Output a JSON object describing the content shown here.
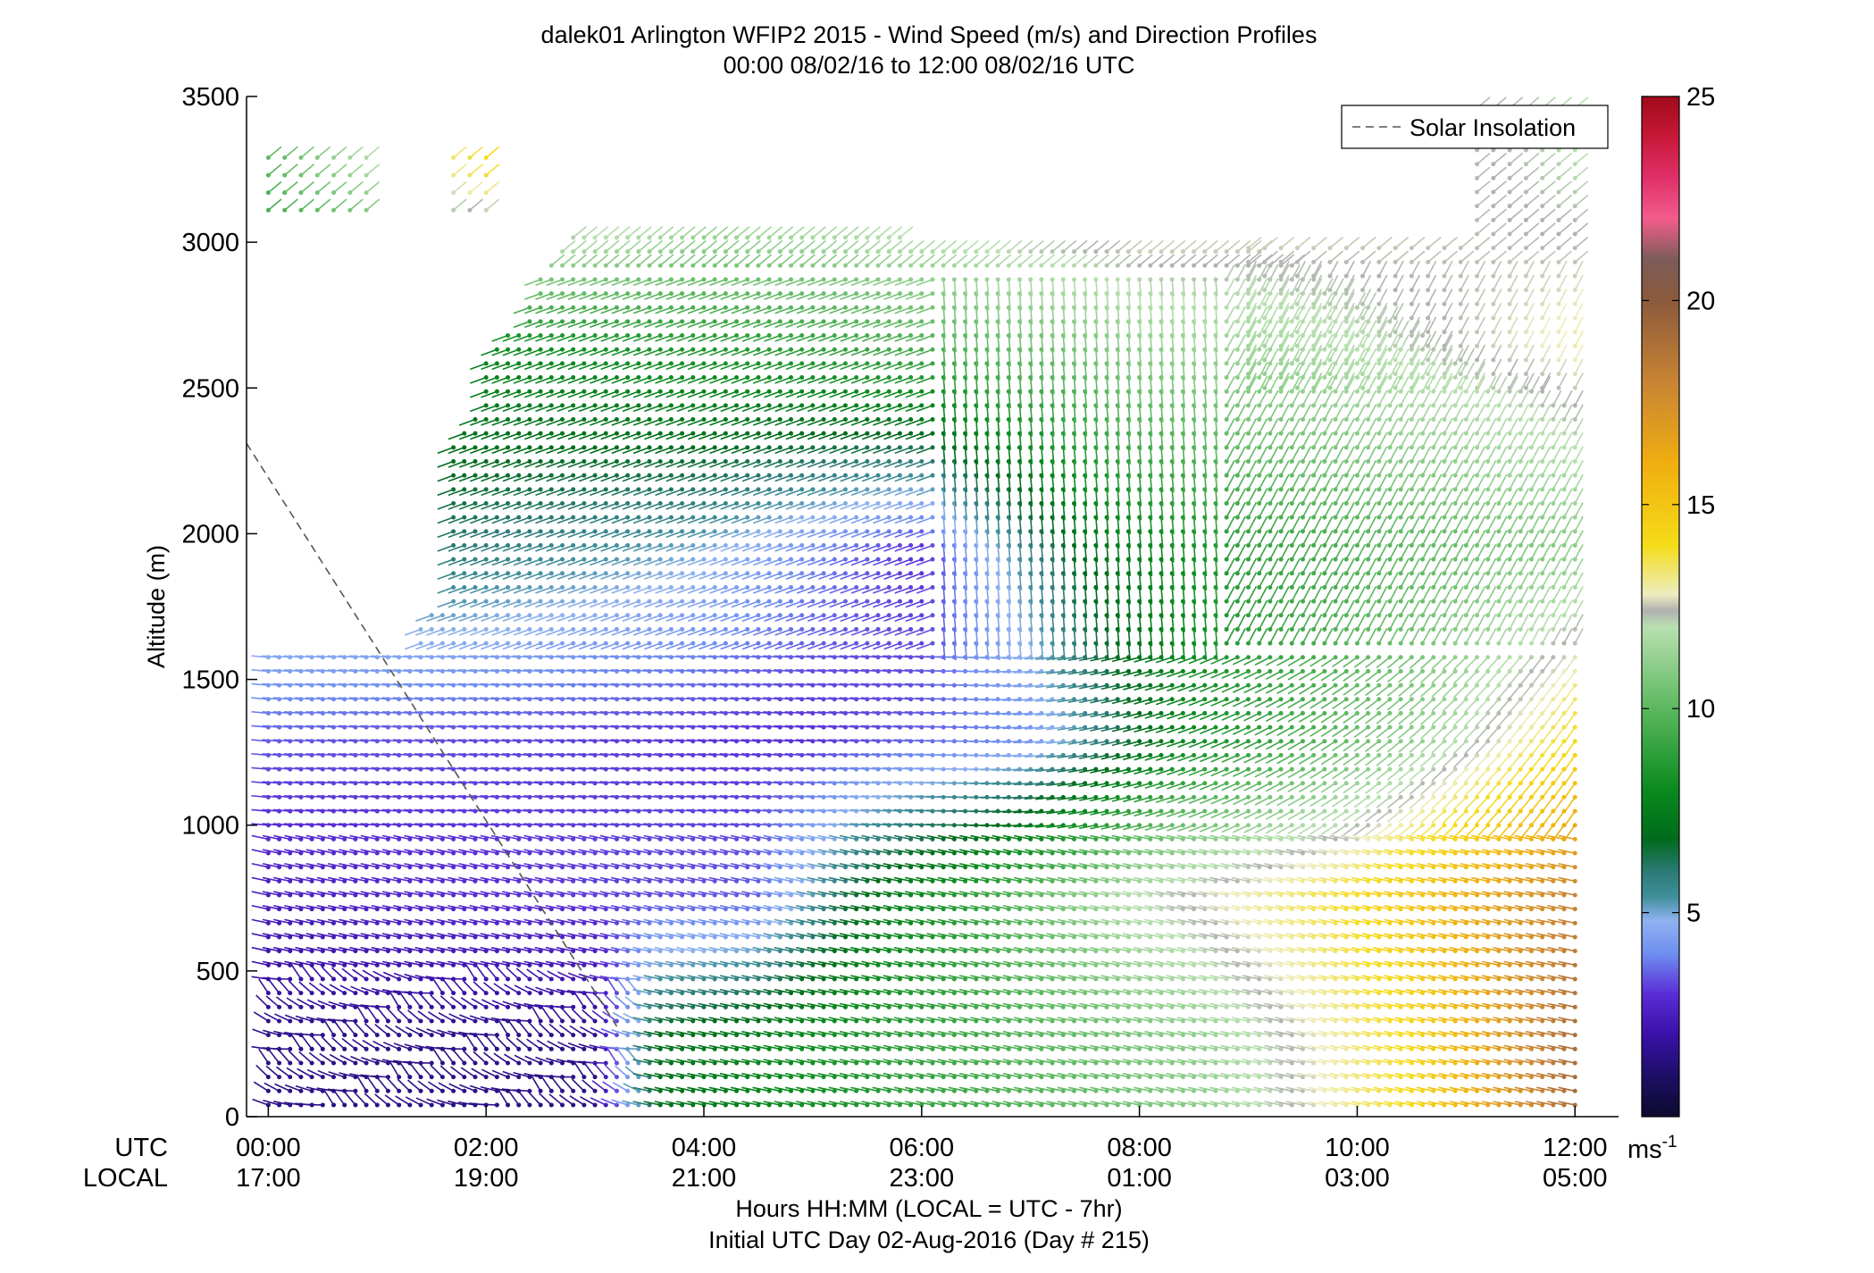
{
  "chart_data": {
    "type": "wind_barb_profile",
    "title": "dalek01 Arlington WFIP2 2015 - Wind Speed (m/s) and Direction Profiles",
    "subtitle": "00:00 08/02/16 to 12:00 08/02/16  UTC",
    "ylabel": "Altitude (m)",
    "ylim": [
      0,
      3500
    ],
    "yticks": [
      "0",
      "500",
      "1000",
      "1500",
      "2000",
      "2500",
      "3000",
      "3500"
    ],
    "ytick_values": [
      0,
      500,
      1000,
      1500,
      2000,
      2500,
      3000,
      3500
    ],
    "xlim_hours": [
      -0.2,
      12.4
    ],
    "xtick_hours": [
      0,
      2,
      4,
      6,
      8,
      10,
      12
    ],
    "xrow_label_utc": "UTC",
    "xrow_label_local": "LOCAL",
    "xticks_utc": [
      "00:00",
      "02:00",
      "04:00",
      "06:00",
      "08:00",
      "10:00",
      "12:00"
    ],
    "xticks_local": [
      "17:00",
      "19:00",
      "21:00",
      "23:00",
      "01:00",
      "03:00",
      "05:00"
    ],
    "xlabel_line1": "Hours HH:MM  (LOCAL = UTC - 7hr)",
    "xlabel_line2": "Initial UTC Day 02-Aug-2016 (Day # 215)",
    "legend": {
      "entries": [
        "Solar Insolation"
      ],
      "placement": "top-right"
    },
    "colorbar": {
      "range": [
        0,
        25
      ],
      "ticks": [
        "5",
        "10",
        "15",
        "20",
        "25"
      ],
      "tick_values": [
        5,
        10,
        15,
        20,
        25
      ],
      "unit_label": "ms",
      "unit_exponent": "-1",
      "stops": [
        {
          "value": 0,
          "color": "#0d0a2e"
        },
        {
          "value": 1,
          "color": "#1c0f66"
        },
        {
          "value": 2,
          "color": "#3a10a8"
        },
        {
          "value": 3,
          "color": "#5a2cd6"
        },
        {
          "value": 4,
          "color": "#6f8ff0"
        },
        {
          "value": 4.8,
          "color": "#8fb2f0"
        },
        {
          "value": 5.4,
          "color": "#3f8f9a"
        },
        {
          "value": 6,
          "color": "#2c7a76"
        },
        {
          "value": 6.8,
          "color": "#006b1c"
        },
        {
          "value": 8,
          "color": "#0a8a1e"
        },
        {
          "value": 10,
          "color": "#5cb85f"
        },
        {
          "value": 12,
          "color": "#b9e0b0"
        },
        {
          "value": 12.4,
          "color": "#b0b0b0"
        },
        {
          "value": 12.8,
          "color": "#ededc0"
        },
        {
          "value": 14,
          "color": "#f5dc18"
        },
        {
          "value": 16,
          "color": "#f0ae10"
        },
        {
          "value": 18,
          "color": "#c88434"
        },
        {
          "value": 20,
          "color": "#8c5a3c"
        },
        {
          "value": 21,
          "color": "#7c5c58"
        },
        {
          "value": 22,
          "color": "#f25c8c"
        },
        {
          "value": 23,
          "color": "#e0306a"
        },
        {
          "value": 24,
          "color": "#c81838"
        },
        {
          "value": 25,
          "color": "#a00a1a"
        }
      ]
    },
    "solar_insolation_line": {
      "hours": [
        -0.2,
        3.2
      ],
      "altitude_m": [
        2310,
        310
      ],
      "style": "dashed",
      "color": "#555555"
    },
    "data_region": {
      "time_step_hours": 0.1,
      "altitude_step_m": 48,
      "top_altitude_by_hour": [
        [
          -0.2,
          1580
        ],
        [
          0.35,
          1580
        ],
        [
          0.36,
          1610
        ],
        [
          1.3,
          1610
        ],
        [
          1.45,
          1720
        ],
        [
          1.6,
          1720
        ],
        [
          1.65,
          2270
        ],
        [
          1.9,
          2430
        ],
        [
          2.0,
          2620
        ],
        [
          2.3,
          2720
        ],
        [
          2.55,
          2920
        ],
        [
          2.9,
          3060
        ],
        [
          4.0,
          3060
        ],
        [
          5.3,
          3040
        ],
        [
          6.0,
          3010
        ],
        [
          7.0,
          3010
        ],
        [
          8.0,
          3010
        ],
        [
          9.0,
          2990
        ],
        [
          10.0,
          2820
        ],
        [
          10.4,
          2720
        ],
        [
          10.9,
          2620
        ],
        [
          11.2,
          2530
        ],
        [
          11.9,
          2480
        ],
        [
          12.05,
          2480
        ]
      ],
      "upper_cluster_hours": [
        [
          0.0,
          0.9
        ],
        [
          1.7,
          2.1
        ]
      ],
      "upper_cluster_altitude_m": [
        3110,
        3340
      ],
      "patch_hours": [
        9.0,
        12.1
      ],
      "patch_altitude_m": [
        2500,
        3480
      ],
      "speed_field_m_s": {
        "description": "wind speed estimated from barb colours; rows = altitude band, values along time",
        "near_surface_0_500m": [
          [
            0,
            1.5
          ],
          [
            3,
            1.5
          ],
          [
            3.6,
            7
          ],
          [
            6,
            9
          ],
          [
            8.5,
            11
          ],
          [
            10.5,
            14
          ],
          [
            12,
            19
          ]
        ],
        "mid_500_1000m": [
          [
            0,
            2.5
          ],
          [
            4.5,
            3.5
          ],
          [
            5.5,
            7
          ],
          [
            8,
            12
          ],
          [
            10,
            14
          ],
          [
            12,
            18
          ]
        ],
        "low_1000_1600m": [
          [
            0,
            3.5
          ],
          [
            5,
            3
          ],
          [
            7,
            4
          ],
          [
            8.5,
            8
          ],
          [
            10.5,
            11
          ],
          [
            12,
            14
          ]
        ],
        "upper_1600_2300m": [
          [
            1.7,
            6
          ],
          [
            4,
            5
          ],
          [
            6,
            3
          ],
          [
            7.5,
            7
          ],
          [
            9,
            9
          ],
          [
            12,
            11
          ]
        ],
        "upper_2300_3000m": [
          [
            2,
            8
          ],
          [
            5,
            9
          ],
          [
            8,
            11
          ],
          [
            10,
            12
          ],
          [
            12,
            13
          ]
        ],
        "top_above_3000m": [
          [
            0,
            10
          ],
          [
            2.5,
            15
          ],
          [
            4,
            13
          ],
          [
            8,
            14
          ],
          [
            12,
            12
          ]
        ]
      },
      "direction_field_deg_to": {
        "description": "direction the barb staff points toward (math degrees, 0 = right, 90 = up)",
        "below_1000m": 168,
        "1000_1600m_early": 175,
        "1600_3000m_early": 200,
        "1600_3000m_0630_0830": 275,
        "upper_late": 62
      }
    }
  }
}
